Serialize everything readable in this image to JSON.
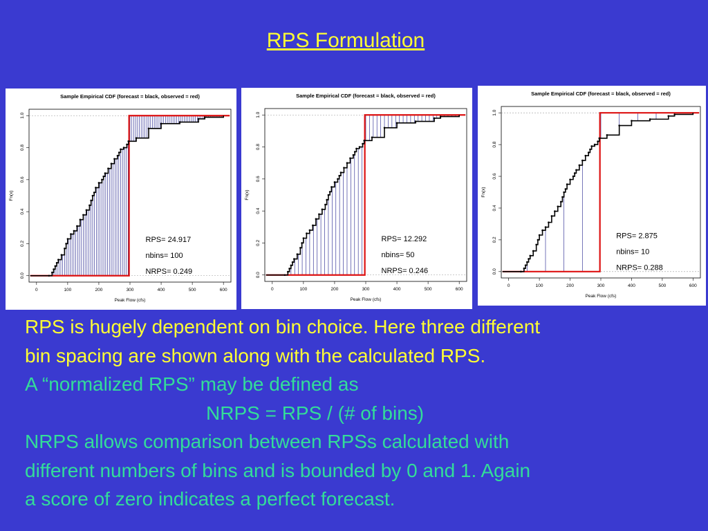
{
  "slide": {
    "title": "RPS Formulation",
    "lines": [
      {
        "text": "RPS is hugely dependent on bin choice. Here three different",
        "color": "yellow"
      },
      {
        "text": "bin spacing are shown along with the calculated RPS.",
        "color": "yellow"
      },
      {
        "text": "A “normalized RPS” may be defined as",
        "color": "green"
      },
      {
        "text": "NRPS = RPS / (# of bins)",
        "color": "green",
        "centered": true
      },
      {
        "text": "NRPS allows comparison between RPSs calculated with",
        "color": "green"
      },
      {
        "text": "different numbers of bins and is bounded by 0 and 1. Again",
        "color": "green"
      },
      {
        "text": "a score of zero indicates a perfect forecast.",
        "color": "green"
      }
    ]
  },
  "colors": {
    "background": "#3a3ad0",
    "yellow_text": "#ffff33",
    "green_text": "#33dd99",
    "forecast_line": "#000000",
    "observed_line": "#dd1111",
    "bin_lines": "#3a3a9a"
  },
  "chart_data": [
    {
      "type": "line",
      "title": "Sample Empirical CDF (forecast = black, observed = red)",
      "xlabel": "Peak Flow (cfs)",
      "ylabel": "Fn(x)",
      "xlim": [
        0,
        600
      ],
      "ylim": [
        0,
        1
      ],
      "xticks": [
        "0",
        "100",
        "200",
        "300",
        "400",
        "500",
        "600"
      ],
      "yticks": [
        "0.0",
        "0.2",
        "0.4",
        "0.6",
        "0.8",
        "1.0"
      ],
      "grid": false,
      "annotations": [
        "RPS= 24.917",
        "nbins= 100",
        "NRPS= 0.249"
      ],
      "nbins": 100,
      "series": [
        {
          "name": "forecast",
          "color": "#000000",
          "x": [
            -20,
            40,
            50,
            55,
            60,
            65,
            70,
            80,
            90,
            95,
            100,
            110,
            120,
            130,
            140,
            150,
            160,
            170,
            175,
            180,
            185,
            190,
            200,
            210,
            215,
            220,
            230,
            240,
            250,
            260,
            265,
            270,
            280,
            290,
            295,
            320,
            360,
            400,
            460,
            520,
            540,
            600
          ],
          "y": [
            0,
            0,
            0.02,
            0.04,
            0.06,
            0.08,
            0.1,
            0.13,
            0.17,
            0.2,
            0.23,
            0.26,
            0.28,
            0.31,
            0.35,
            0.38,
            0.41,
            0.44,
            0.47,
            0.5,
            0.52,
            0.55,
            0.58,
            0.6,
            0.62,
            0.64,
            0.67,
            0.7,
            0.73,
            0.75,
            0.77,
            0.79,
            0.8,
            0.82,
            0.84,
            0.86,
            0.92,
            0.95,
            0.96,
            0.98,
            0.99,
            1.0
          ]
        },
        {
          "name": "observed",
          "color": "#dd1111",
          "x": [
            -20,
            297,
            297,
            620
          ],
          "y": [
            0,
            0,
            1,
            1
          ]
        }
      ]
    },
    {
      "type": "line",
      "title": "Sample Empirical CDF (forecast = black, observed = red)",
      "xlabel": "Peak Flow (cfs)",
      "ylabel": "Fn(x)",
      "xlim": [
        0,
        600
      ],
      "ylim": [
        0,
        1
      ],
      "xticks": [
        "0",
        "100",
        "200",
        "300",
        "400",
        "500",
        "600"
      ],
      "yticks": [
        "0.0",
        "0.2",
        "0.4",
        "0.6",
        "0.8",
        "1.0"
      ],
      "grid": false,
      "annotations": [
        "RPS= 12.292",
        "nbins= 50",
        "NRPS= 0.246"
      ],
      "nbins": 50,
      "series": [
        {
          "name": "forecast",
          "color": "#000000",
          "x": [
            -20,
            40,
            50,
            55,
            60,
            65,
            70,
            80,
            90,
            95,
            100,
            110,
            120,
            130,
            140,
            150,
            160,
            170,
            175,
            180,
            185,
            190,
            200,
            210,
            215,
            220,
            230,
            240,
            250,
            260,
            265,
            270,
            280,
            290,
            295,
            320,
            360,
            400,
            460,
            520,
            540,
            600
          ],
          "y": [
            0,
            0,
            0.02,
            0.04,
            0.06,
            0.08,
            0.1,
            0.13,
            0.17,
            0.2,
            0.23,
            0.26,
            0.28,
            0.31,
            0.35,
            0.38,
            0.41,
            0.44,
            0.47,
            0.5,
            0.52,
            0.55,
            0.58,
            0.6,
            0.62,
            0.64,
            0.67,
            0.7,
            0.73,
            0.75,
            0.77,
            0.79,
            0.8,
            0.82,
            0.84,
            0.86,
            0.92,
            0.95,
            0.96,
            0.98,
            0.99,
            1.0
          ]
        },
        {
          "name": "observed",
          "color": "#dd1111",
          "x": [
            -20,
            297,
            297,
            620
          ],
          "y": [
            0,
            0,
            1,
            1
          ]
        }
      ]
    },
    {
      "type": "line",
      "title": "Sample Empirical CDF (forecast = black, observed = red)",
      "xlabel": "Peak Flow (cfs)",
      "ylabel": "Fn(x)",
      "xlim": [
        0,
        600
      ],
      "ylim": [
        0,
        1
      ],
      "xticks": [
        "0",
        "100",
        "200",
        "300",
        "400",
        "500",
        "600"
      ],
      "yticks": [
        "0.0",
        "0.2",
        "0.4",
        "0.6",
        "0.8",
        "1.0"
      ],
      "grid": false,
      "annotations": [
        "RPS= 2.875",
        "nbins= 10",
        "NRPS= 0.288"
      ],
      "nbins": 10,
      "series": [
        {
          "name": "forecast",
          "color": "#000000",
          "x": [
            -20,
            40,
            50,
            55,
            60,
            65,
            70,
            80,
            90,
            95,
            100,
            110,
            120,
            130,
            140,
            150,
            160,
            170,
            175,
            180,
            185,
            190,
            200,
            210,
            215,
            220,
            230,
            240,
            250,
            260,
            265,
            270,
            280,
            290,
            295,
            320,
            360,
            400,
            460,
            520,
            540,
            600
          ],
          "y": [
            0,
            0,
            0.02,
            0.04,
            0.06,
            0.08,
            0.1,
            0.13,
            0.17,
            0.2,
            0.23,
            0.26,
            0.28,
            0.31,
            0.35,
            0.38,
            0.41,
            0.44,
            0.47,
            0.5,
            0.52,
            0.55,
            0.58,
            0.6,
            0.62,
            0.64,
            0.67,
            0.7,
            0.73,
            0.75,
            0.77,
            0.79,
            0.8,
            0.82,
            0.84,
            0.86,
            0.92,
            0.95,
            0.96,
            0.98,
            0.99,
            1.0
          ]
        },
        {
          "name": "observed",
          "color": "#dd1111",
          "x": [
            -20,
            297,
            297,
            620
          ],
          "y": [
            0,
            0,
            1,
            1
          ]
        }
      ]
    }
  ]
}
